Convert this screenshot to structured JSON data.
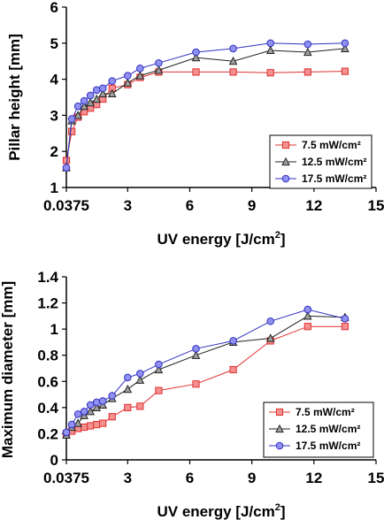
{
  "chart_data": [
    {
      "type": "line",
      "xlabel": "UV energy [J/cm",
      "xlabel_sup": "2",
      "xlabel_end": "]",
      "ylabel": "Pillar height [mm]",
      "xlim": [
        0.0375,
        15
      ],
      "ylim": [
        1,
        6
      ],
      "xticks": [
        0.0375,
        3,
        6,
        9,
        12,
        15
      ],
      "xtick_labels": [
        "0.0375",
        "3",
        "6",
        "9",
        "12",
        "15"
      ],
      "yticks": [
        1,
        2,
        3,
        4,
        5,
        6
      ],
      "ytick_labels": [
        "1",
        "2",
        "3",
        "4",
        "5",
        "6"
      ],
      "grid": false,
      "legend_position": "bottom-right",
      "series": [
        {
          "name": "7.5 mW/cm²",
          "color": "#e03030",
          "fill": "#f49090",
          "marker": "square",
          "x": [
            0.0375,
            0.3,
            0.6,
            0.9,
            1.2,
            1.5,
            1.8,
            2.25,
            3,
            3.6,
            4.5,
            6.3,
            8.1,
            9.9,
            11.7,
            13.5
          ],
          "y": [
            1.75,
            2.55,
            2.95,
            3.1,
            3.2,
            3.3,
            3.45,
            3.75,
            3.85,
            4.05,
            4.2,
            4.2,
            4.2,
            4.18,
            4.2,
            4.22
          ]
        },
        {
          "name": "12.5 mW/cm²",
          "color": "#222222",
          "fill": "#a0a0a0",
          "marker": "triangle",
          "x": [
            0.0375,
            0.3,
            0.6,
            0.9,
            1.2,
            1.5,
            1.8,
            2.25,
            3,
            3.6,
            4.5,
            6.3,
            8.1,
            9.9,
            11.7,
            13.5
          ],
          "y": [
            1.55,
            2.85,
            3.0,
            3.25,
            3.35,
            3.45,
            3.6,
            3.6,
            3.9,
            4.1,
            4.25,
            4.6,
            4.5,
            4.8,
            4.75,
            4.85
          ]
        },
        {
          "name": "17.5 mW/cm²",
          "color": "#3030c0",
          "fill": "#9090f0",
          "marker": "circle",
          "x": [
            0.0375,
            0.3,
            0.6,
            0.9,
            1.2,
            1.5,
            1.8,
            2.25,
            3,
            3.6,
            4.5,
            6.3,
            8.1,
            9.9,
            11.7,
            13.5
          ],
          "y": [
            1.55,
            2.9,
            3.25,
            3.4,
            3.55,
            3.7,
            3.75,
            3.95,
            4.1,
            4.3,
            4.45,
            4.75,
            4.85,
            5.0,
            4.97,
            5.0
          ]
        }
      ]
    },
    {
      "type": "line",
      "xlabel": "UV energy [J/cm",
      "xlabel_sup": "2",
      "xlabel_end": "]",
      "ylabel": "Maximum diameter [mm]",
      "xlim": [
        0.0375,
        15
      ],
      "ylim": [
        0,
        1.4
      ],
      "xticks": [
        0.0375,
        3,
        6,
        9,
        12,
        15
      ],
      "xtick_labels": [
        "0.0375",
        "3",
        "6",
        "9",
        "12",
        "15"
      ],
      "yticks": [
        0,
        0.2,
        0.4,
        0.6,
        0.8,
        1,
        1.2,
        1.4
      ],
      "ytick_labels": [
        "0",
        "0.2",
        "0.4",
        "0.6",
        "0.8",
        "1",
        "1.2",
        "1.4"
      ],
      "grid": false,
      "legend_position": "bottom-right",
      "series": [
        {
          "name": "7.5 mW/cm²",
          "color": "#e03030",
          "fill": "#f49090",
          "marker": "square",
          "x": [
            0.0375,
            0.3,
            0.6,
            0.9,
            1.2,
            1.5,
            1.8,
            2.25,
            3,
            3.6,
            4.5,
            6.3,
            8.1,
            9.9,
            11.7,
            13.5
          ],
          "y": [
            0.2,
            0.22,
            0.24,
            0.25,
            0.26,
            0.27,
            0.28,
            0.33,
            0.4,
            0.41,
            0.53,
            0.58,
            0.69,
            0.91,
            1.02,
            1.02
          ]
        },
        {
          "name": "12.5 mW/cm²",
          "color": "#222222",
          "fill": "#a0a0a0",
          "marker": "triangle",
          "x": [
            0.0375,
            0.3,
            0.6,
            0.9,
            1.2,
            1.5,
            1.8,
            2.25,
            3,
            3.6,
            4.5,
            6.3,
            8.1,
            9.9,
            11.7,
            13.5
          ],
          "y": [
            0.19,
            0.25,
            0.28,
            0.34,
            0.37,
            0.4,
            0.42,
            0.47,
            0.54,
            0.61,
            0.69,
            0.8,
            0.9,
            0.93,
            1.1,
            1.09
          ]
        },
        {
          "name": "17.5 mW/cm²",
          "color": "#3030c0",
          "fill": "#9090f0",
          "marker": "circle",
          "x": [
            0.0375,
            0.3,
            0.6,
            0.9,
            1.2,
            1.5,
            1.8,
            2.25,
            3,
            3.6,
            4.5,
            6.3,
            8.1,
            9.9,
            11.7,
            13.5
          ],
          "y": [
            0.21,
            0.27,
            0.35,
            0.37,
            0.42,
            0.44,
            0.45,
            0.49,
            0.63,
            0.66,
            0.73,
            0.85,
            0.91,
            1.06,
            1.15,
            1.08
          ]
        }
      ]
    }
  ]
}
